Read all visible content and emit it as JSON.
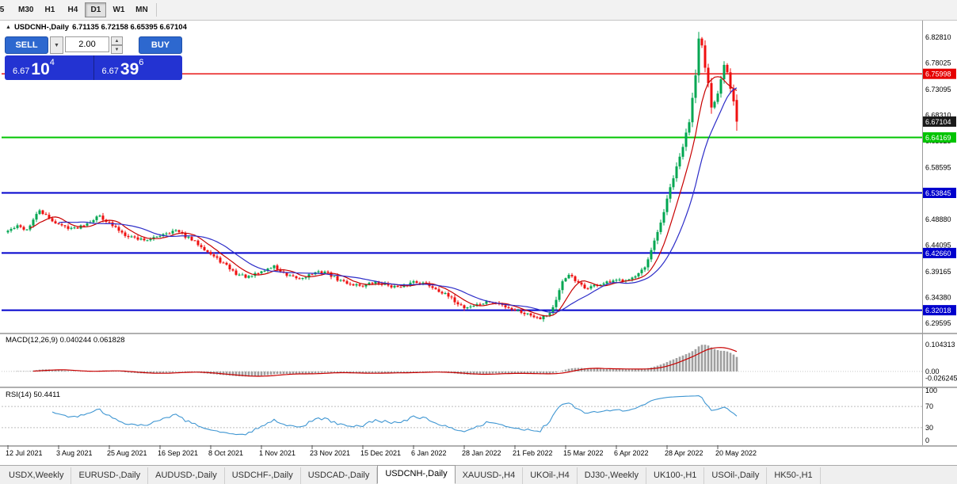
{
  "toolbar": {
    "periods": [
      "5",
      "M30",
      "H1",
      "H4",
      "D1",
      "W1",
      "MN"
    ],
    "active_period": "D1"
  },
  "chart_header": {
    "icon": "▲",
    "symbol": "USDCNH-,Daily",
    "ohlc": "6.71135 6.72158 6.65395 6.67104"
  },
  "trade_panel": {
    "sell_label": "SELL",
    "buy_label": "BUY",
    "volume": "2.00",
    "sell_price": {
      "base": "6.67",
      "pips": "10",
      "point": "4"
    },
    "buy_price": {
      "base": "6.67",
      "pips": "39",
      "point": "6"
    }
  },
  "indicators": {
    "macd_label": "MACD(12,26,9) 0.040244 0.061828",
    "rsi_label": "RSI(14) 50.4411"
  },
  "tabs": {
    "items": [
      "USDX,Weekly",
      "EURUSD-,Daily",
      "AUDUSD-,Daily",
      "USDCHF-,Daily",
      "USDCAD-,Daily",
      "USDCNH-,Daily",
      "XAUUSD-,H4",
      "UKOil-,H4",
      "DJ30-,Weekly",
      "UK100-,H1",
      "USOil-,Daily",
      "HK50-,H1"
    ],
    "active": "USDCNH-,Daily"
  },
  "chart_data": {
    "type": "candlestick",
    "symbol": "USDCNH",
    "timeframe": "Daily",
    "ohlc_current": {
      "open": 6.71135,
      "high": 6.72158,
      "low": 6.65395,
      "close": 6.67104
    },
    "current_price": 6.67104,
    "ylim": [
      6.2812,
      6.8561
    ],
    "price_axis_labels": [
      "6.82810",
      "6.78025",
      "6.73095",
      "6.68310",
      "6.63525",
      "6.58595",
      "6.48880",
      "6.44095",
      "6.39165",
      "6.34380",
      "6.29595"
    ],
    "hlines": [
      {
        "price": 6.75998,
        "color": "#e60000",
        "width": 1.4
      },
      {
        "price": 6.64169,
        "color": "#00c400",
        "width": 2
      },
      {
        "price": 6.53845,
        "color": "#0000cd",
        "width": 2
      },
      {
        "price": 6.4266,
        "color": "#0000cd",
        "width": 2
      },
      {
        "price": 6.32018,
        "color": "#0000cd",
        "width": 2
      }
    ],
    "x_labels": [
      "12 Jul 2021",
      "3 Aug 2021",
      "25 Aug 2021",
      "16 Sep 2021",
      "8 Oct 2021",
      "1 Nov 2021",
      "23 Nov 2021",
      "15 Dec 2021",
      "6 Jan 2022",
      "28 Jan 2022",
      "21 Feb 2022",
      "15 Mar 2022",
      "6 Apr 2022",
      "28 Apr 2022",
      "20 May 2022"
    ],
    "candles_per_label": 16,
    "close_anchors": [
      [
        0,
        6.468
      ],
      [
        3,
        6.476
      ],
      [
        6,
        6.47
      ],
      [
        10,
        6.506
      ],
      [
        13,
        6.49
      ],
      [
        17,
        6.477
      ],
      [
        21,
        6.472
      ],
      [
        25,
        6.483
      ],
      [
        29,
        6.496
      ],
      [
        33,
        6.477
      ],
      [
        37,
        6.461
      ],
      [
        41,
        6.453
      ],
      [
        45,
        6.451
      ],
      [
        49,
        6.463
      ],
      [
        53,
        6.468
      ],
      [
        57,
        6.454
      ],
      [
        61,
        6.44
      ],
      [
        64,
        6.424
      ],
      [
        68,
        6.407
      ],
      [
        72,
        6.388
      ],
      [
        76,
        6.381
      ],
      [
        80,
        6.392
      ],
      [
        84,
        6.402
      ],
      [
        88,
        6.383
      ],
      [
        92,
        6.379
      ],
      [
        96,
        6.388
      ],
      [
        100,
        6.392
      ],
      [
        104,
        6.377
      ],
      [
        108,
        6.369
      ],
      [
        112,
        6.366
      ],
      [
        116,
        6.372
      ],
      [
        120,
        6.367
      ],
      [
        124,
        6.361
      ],
      [
        128,
        6.374
      ],
      [
        132,
        6.369
      ],
      [
        136,
        6.357
      ],
      [
        140,
        6.341
      ],
      [
        144,
        6.325
      ],
      [
        148,
        6.33
      ],
      [
        152,
        6.336
      ],
      [
        156,
        6.329
      ],
      [
        160,
        6.321
      ],
      [
        164,
        6.313
      ],
      [
        168,
        6.306
      ],
      [
        171,
        6.315
      ],
      [
        173,
        6.338
      ],
      [
        175,
        6.372
      ],
      [
        177,
        6.388
      ],
      [
        179,
        6.374
      ],
      [
        182,
        6.361
      ],
      [
        186,
        6.367
      ],
      [
        190,
        6.372
      ],
      [
        194,
        6.377
      ],
      [
        198,
        6.382
      ],
      [
        201,
        6.398
      ],
      [
        203,
        6.43
      ],
      [
        205,
        6.465
      ],
      [
        207,
        6.503
      ],
      [
        209,
        6.548
      ],
      [
        211,
        6.585
      ],
      [
        213,
        6.625
      ],
      [
        215,
        6.672
      ],
      [
        217,
        6.76
      ],
      [
        218,
        6.828
      ],
      [
        219,
        6.812
      ],
      [
        220,
        6.77
      ],
      [
        221,
        6.74
      ],
      [
        222,
        6.695
      ],
      [
        223,
        6.708
      ],
      [
        224,
        6.722
      ],
      [
        225,
        6.752
      ],
      [
        226,
        6.778
      ],
      [
        227,
        6.765
      ],
      [
        228,
        6.735
      ],
      [
        229,
        6.71
      ],
      [
        230,
        6.671
      ]
    ],
    "peak_index": 218,
    "peak_high": 6.8381,
    "trough_index": 168,
    "trough_low": 6.303,
    "ma": [
      {
        "period": 8,
        "color": "#c80000"
      },
      {
        "period": 17,
        "color": "#2d2dc8"
      }
    ],
    "macd": {
      "params": [
        12,
        26,
        9
      ],
      "values": [
        0.040244,
        0.061828
      ],
      "peak": 0.104313,
      "axis": [
        "0.104313",
        "0.00",
        "-0.026245"
      ],
      "ylim": [
        -0.053,
        0.145
      ]
    },
    "rsi": {
      "period": 14,
      "value": 50.4411,
      "levels": [
        70,
        30
      ],
      "axis": [
        "100",
        "70",
        "30",
        "0"
      ]
    },
    "colors": {
      "up": "#00a651",
      "down": "#ef1010",
      "macd_hist": "#9f9f9f",
      "macd_signal": "#c80000",
      "rsi": "#3f96d2",
      "current_tag": "#1a1a1a",
      "panel_blue": "#2333d2"
    }
  }
}
